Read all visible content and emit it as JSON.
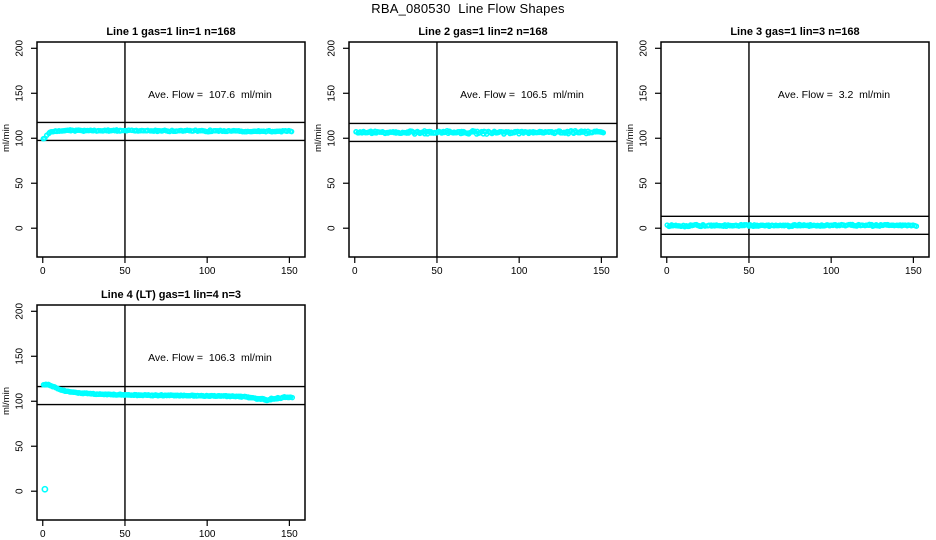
{
  "page_title": "RBA_080530  Line Flow Shapes",
  "colors": {
    "points": "#00FFFF",
    "lines": "#000000",
    "background": "#FFFFFF",
    "text": "#000000"
  },
  "axes": {
    "y_label": "ml/min",
    "x_ticks": [
      0,
      50,
      100,
      150
    ],
    "y_ticks": [
      0,
      50,
      100,
      150,
      200
    ],
    "x_range": [
      -3.5,
      159.5
    ],
    "y_range": [
      -32,
      207
    ],
    "grid": "off"
  },
  "chart_data": [
    {
      "type": "scatter",
      "title": "Line 1 gas=1 lin=1 n=168",
      "annotation": "Ave. Flow =  107.6  ml/min",
      "ave_flow": 107.6,
      "n": 168,
      "ref_line_upper": 117.6,
      "ref_line_lower": 97.6,
      "vline_x": 50,
      "grid_pos": {
        "row": 0,
        "col": 0
      },
      "n_points": 172,
      "jitter": 1.2,
      "x_jitter": 0.4,
      "profile": [
        [
          0.7,
          98.5
        ],
        [
          1.5,
          101.5
        ],
        [
          2.5,
          104.0
        ],
        [
          4,
          106.0
        ],
        [
          6,
          107.3
        ],
        [
          9,
          108.1
        ],
        [
          15,
          108.5
        ],
        [
          30,
          108.6
        ],
        [
          60,
          108.4
        ],
        [
          100,
          108.2
        ],
        [
          130,
          108.0
        ],
        [
          151.5,
          107.8
        ]
      ],
      "noise_zones": [],
      "outliers": []
    },
    {
      "type": "scatter",
      "title": "Line 2 gas=1 lin=2 n=168",
      "annotation": "Ave. Flow =  106.5  ml/min",
      "ave_flow": 106.5,
      "n": 168,
      "ref_line_upper": 116.5,
      "ref_line_lower": 96.5,
      "vline_x": 50,
      "grid_pos": {
        "row": 0,
        "col": 1
      },
      "n_points": 200,
      "jitter": 2.4,
      "x_jitter": 0.4,
      "profile": [
        [
          0.4,
          106.4
        ],
        [
          75,
          106.5
        ],
        [
          151.5,
          106.6
        ]
      ],
      "noise_zones": [],
      "outliers": []
    },
    {
      "type": "scatter",
      "title": "Line 3 gas=1 lin=3 n=168",
      "annotation": "Ave. Flow =  3.2  ml/min",
      "ave_flow": 3.2,
      "n": 168,
      "ref_line_upper": 13.2,
      "ref_line_lower": -6.8,
      "vline_x": 50,
      "grid_pos": {
        "row": 0,
        "col": 2
      },
      "n_points": 190,
      "jitter": 1.6,
      "x_jitter": 0.4,
      "profile": [
        [
          0.4,
          2.6
        ],
        [
          50,
          3.1
        ],
        [
          100,
          3.2
        ],
        [
          151.5,
          3.3
        ]
      ],
      "noise_zones": [],
      "outliers": []
    },
    {
      "type": "scatter",
      "title": "Line 4 (LT) gas=1 lin=4 n=3",
      "annotation": "Ave. Flow =  106.3  ml/min",
      "ave_flow": 106.3,
      "n": 3,
      "ref_line_upper": 116.3,
      "ref_line_lower": 96.3,
      "vline_x": 50,
      "grid_pos": {
        "row": 1,
        "col": 0
      },
      "n_points": 260,
      "jitter": 0.8,
      "x_jitter": 0.4,
      "profile": [
        [
          0.8,
          118.6
        ],
        [
          2,
          118.6
        ],
        [
          3.5,
          118.2
        ],
        [
          5,
          117.2
        ],
        [
          7,
          115.6
        ],
        [
          9,
          114.0
        ],
        [
          12,
          112.2
        ],
        [
          15,
          111.0
        ],
        [
          19,
          109.9
        ],
        [
          24,
          109.0
        ],
        [
          30,
          108.3
        ],
        [
          38,
          107.7
        ],
        [
          48,
          107.2
        ],
        [
          60,
          106.8
        ],
        [
          75,
          106.5
        ],
        [
          90,
          106.2
        ],
        [
          105,
          105.9
        ],
        [
          115,
          105.6
        ],
        [
          122,
          105.2
        ],
        [
          127,
          104.3
        ],
        [
          131,
          102.8
        ],
        [
          134,
          101.8
        ],
        [
          137,
          101.3
        ],
        [
          140,
          102.2
        ],
        [
          143,
          103.4
        ],
        [
          146,
          104.2
        ],
        [
          149,
          104.4
        ],
        [
          151.5,
          104.2
        ]
      ],
      "noise_zones": [
        {
          "from": 125,
          "to": 147,
          "factor": 2.4
        }
      ],
      "outliers": [
        [
          1.3,
          2.2
        ]
      ]
    }
  ]
}
